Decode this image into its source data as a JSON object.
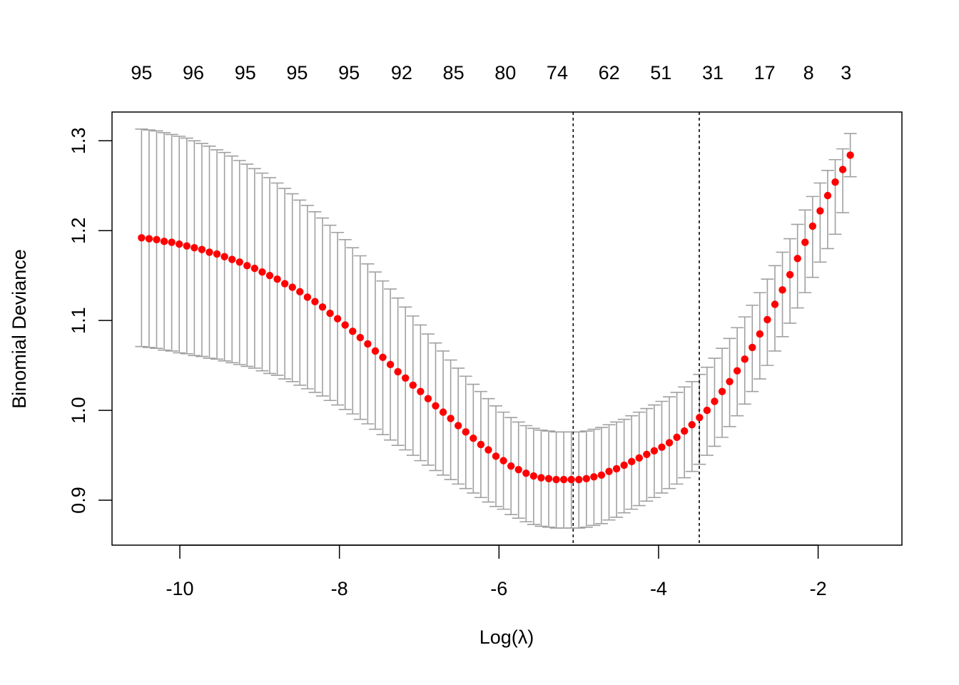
{
  "chart_data": {
    "type": "scatter",
    "xlabel": "Log(λ)",
    "ylabel": "Binomial Deviance",
    "xlim": [
      -10.85,
      -0.95
    ],
    "ylim": [
      0.85,
      1.332
    ],
    "x_ticks": [
      -10,
      -8,
      -6,
      -4,
      -2
    ],
    "x_tick_labels": [
      "-10",
      "-8",
      "-6",
      "-4",
      "-2"
    ],
    "y_ticks": [
      0.9,
      1.0,
      1.1,
      1.2,
      1.3
    ],
    "y_tick_labels": [
      "0.9",
      "1.0",
      "1.1",
      "1.2",
      "1.3"
    ],
    "top_axis": {
      "x": [
        -10.48,
        -9.83,
        -9.18,
        -8.53,
        -7.88,
        -7.22,
        -6.57,
        -5.92,
        -5.27,
        -4.62,
        -3.97,
        -3.32,
        -2.67,
        -2.12,
        -1.65
      ],
      "labels": [
        "95",
        "96",
        "95",
        "95",
        "95",
        "92",
        "85",
        "80",
        "74",
        "62",
        "51",
        "31",
        "17",
        "8",
        "3"
      ]
    },
    "vlines": [
      -5.07,
      -3.49
    ],
    "point_color": "#ff0000",
    "errorbar_color": "#a0a0a0",
    "x_start": -10.48,
    "x_step": 0.0945,
    "mean": [
      1.192,
      1.191,
      1.19,
      1.188,
      1.187,
      1.185,
      1.183,
      1.181,
      1.179,
      1.176,
      1.174,
      1.171,
      1.168,
      1.165,
      1.161,
      1.158,
      1.154,
      1.15,
      1.146,
      1.141,
      1.137,
      1.132,
      1.126,
      1.121,
      1.115,
      1.108,
      1.102,
      1.095,
      1.088,
      1.081,
      1.074,
      1.066,
      1.059,
      1.051,
      1.043,
      1.036,
      1.028,
      1.021,
      1.013,
      1.005,
      0.998,
      0.991,
      0.983,
      0.976,
      0.969,
      0.962,
      0.956,
      0.949,
      0.944,
      0.938,
      0.934,
      0.93,
      0.927,
      0.925,
      0.924,
      0.923,
      0.923,
      0.923,
      0.923,
      0.924,
      0.926,
      0.928,
      0.932,
      0.935,
      0.939,
      0.943,
      0.947,
      0.951,
      0.955,
      0.959,
      0.964,
      0.97,
      0.977,
      0.984,
      0.992,
      1.0,
      1.01,
      1.021,
      1.032,
      1.044,
      1.057,
      1.07,
      1.085,
      1.101,
      1.118,
      1.134,
      1.151,
      1.169,
      1.187,
      1.205,
      1.222,
      1.239,
      1.254,
      1.268,
      1.284
    ],
    "upper": [
      1.313,
      1.312,
      1.311,
      1.309,
      1.307,
      1.305,
      1.303,
      1.3,
      1.297,
      1.294,
      1.29,
      1.287,
      1.283,
      1.278,
      1.274,
      1.269,
      1.264,
      1.259,
      1.253,
      1.247,
      1.241,
      1.234,
      1.228,
      1.221,
      1.214,
      1.206,
      1.198,
      1.19,
      1.181,
      1.172,
      1.163,
      1.154,
      1.144,
      1.135,
      1.125,
      1.115,
      1.105,
      1.095,
      1.085,
      1.075,
      1.066,
      1.056,
      1.047,
      1.038,
      1.029,
      1.021,
      1.013,
      1.005,
      0.998,
      0.992,
      0.987,
      0.983,
      0.98,
      0.978,
      0.977,
      0.976,
      0.976,
      0.976,
      0.976,
      0.977,
      0.979,
      0.981,
      0.984,
      0.987,
      0.99,
      0.994,
      0.998,
      1.002,
      1.006,
      1.01,
      1.015,
      1.02,
      1.026,
      1.032,
      1.04,
      1.048,
      1.058,
      1.069,
      1.08,
      1.092,
      1.104,
      1.117,
      1.131,
      1.146,
      1.161,
      1.176,
      1.191,
      1.207,
      1.223,
      1.238,
      1.253,
      1.267,
      1.279,
      1.291,
      1.308
    ],
    "lower": [
      1.071,
      1.07,
      1.069,
      1.067,
      1.066,
      1.064,
      1.063,
      1.061,
      1.06,
      1.058,
      1.057,
      1.055,
      1.053,
      1.051,
      1.049,
      1.047,
      1.044,
      1.041,
      1.039,
      1.035,
      1.032,
      1.028,
      1.024,
      1.02,
      1.016,
      1.011,
      1.006,
      1.001,
      0.996,
      0.99,
      0.985,
      0.979,
      0.973,
      0.967,
      0.961,
      0.956,
      0.95,
      0.944,
      0.939,
      0.933,
      0.928,
      0.923,
      0.918,
      0.913,
      0.908,
      0.903,
      0.898,
      0.893,
      0.89,
      0.884,
      0.88,
      0.876,
      0.873,
      0.871,
      0.87,
      0.869,
      0.869,
      0.869,
      0.869,
      0.87,
      0.872,
      0.874,
      0.878,
      0.881,
      0.886,
      0.89,
      0.894,
      0.899,
      0.903,
      0.908,
      0.913,
      0.918,
      0.925,
      0.932,
      0.94,
      0.95,
      0.96,
      0.97,
      0.982,
      0.994,
      1.007,
      1.021,
      1.035,
      1.05,
      1.066,
      1.082,
      1.097,
      1.114,
      1.131,
      1.148,
      1.165,
      1.18,
      1.196,
      1.22,
      1.26
    ]
  }
}
